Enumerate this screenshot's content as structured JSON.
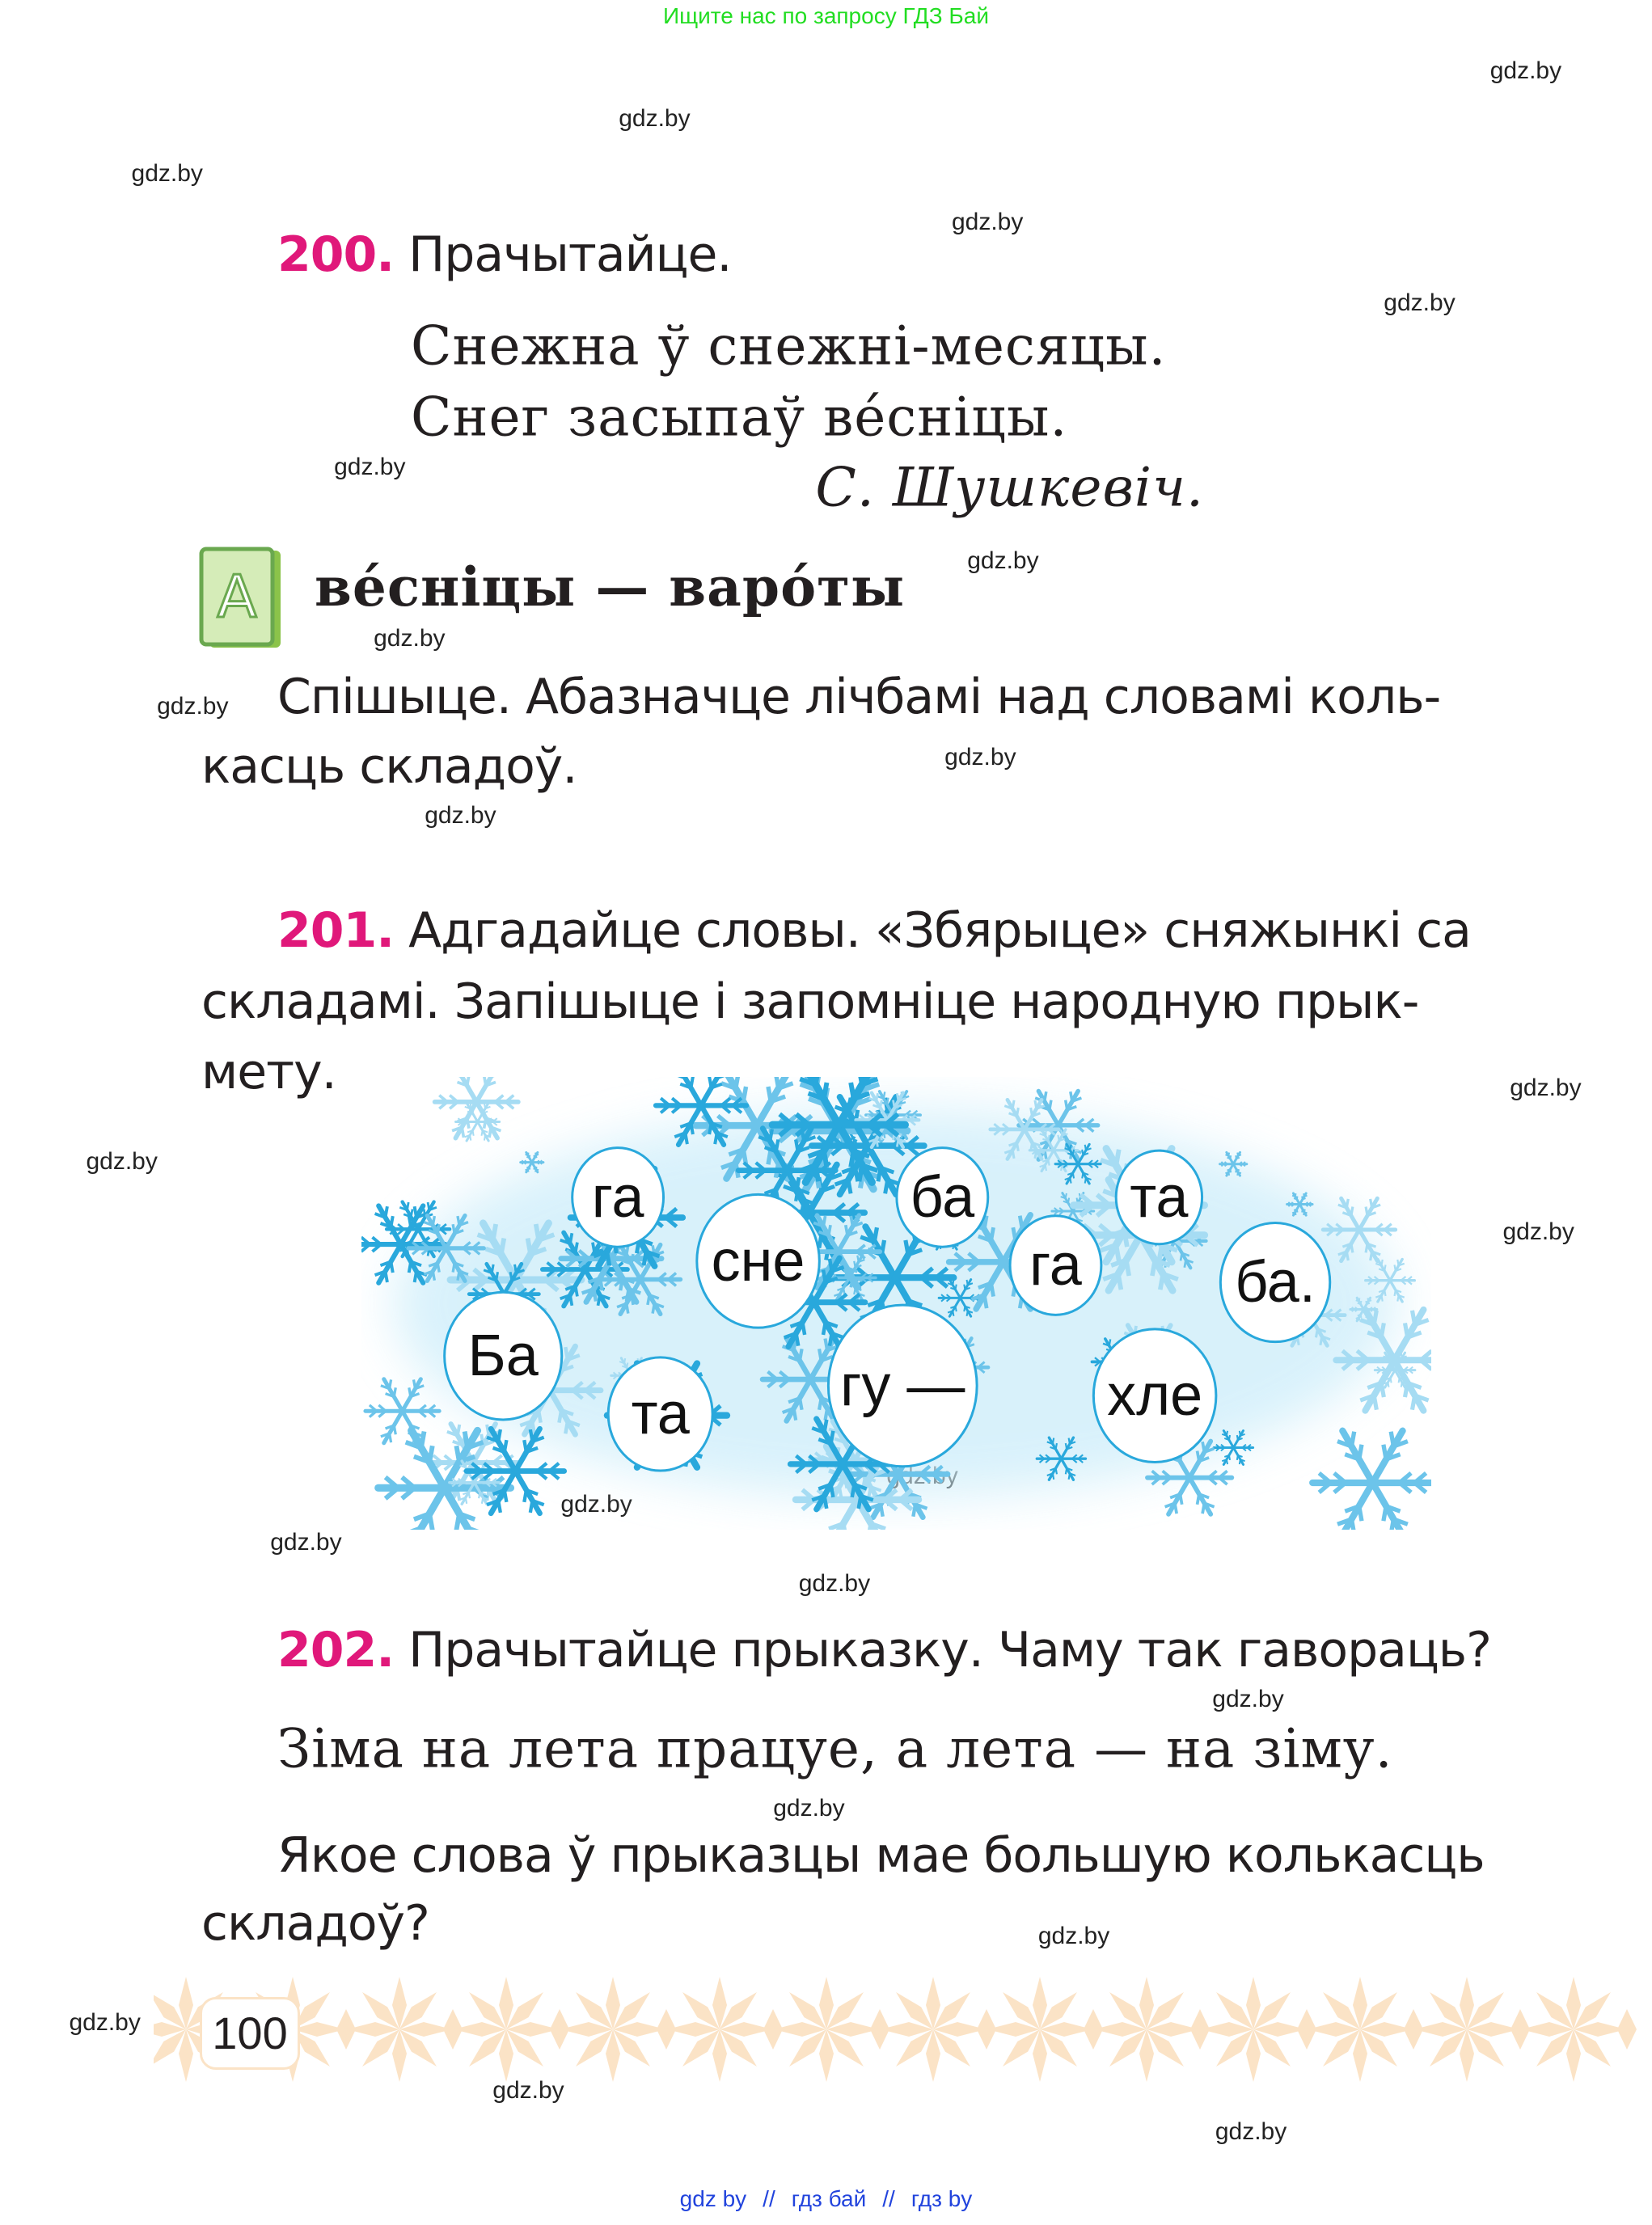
{
  "top_banner": "Ищите нас по запросу ГДЗ Бай",
  "watermark": "gdz.by",
  "ex200": {
    "number": "200.",
    "instruction": "Прачытайце.",
    "poem": [
      "Снежна ў снежні-месяцы.",
      "Снег засыпаў ве́сніцы."
    ],
    "author": "С. Шушкевіч.",
    "vocab_icon_letter": "A",
    "vocab": "ве́сніцы — варо́ты",
    "task": [
      "Спішыце. Абазначце лічбамі над словамі коль-",
      "касць складоў."
    ]
  },
  "ex201": {
    "number": "201.",
    "text": [
      "Адгадайце словы. «Збярыце» сняжынкі са",
      "складамі. Запішыце і запомніце народную прык-",
      "мету."
    ],
    "syllables": [
      "га",
      "сне",
      "ба",
      "та",
      "га",
      "ба.",
      "Ба",
      "та",
      "гу —",
      "хле"
    ]
  },
  "ex202": {
    "number": "202.",
    "instruction": "Прачытайце прыказку. Чаму так гавораць?",
    "proverb": "Зіма на лета працуе, а лета — на зіму.",
    "question": [
      "Якое слова ў прыказцы мае большую колькасць",
      "складоў?"
    ]
  },
  "page_number": "100",
  "colors": {
    "accent": "#e0187a",
    "snow": "#29a8dc",
    "ornament": "#fbe3c6",
    "banner": "#22dd22",
    "footer": "#2244dd"
  },
  "footer": [
    "gdz by",
    "//",
    "гдз бай",
    "//",
    "гдз by"
  ]
}
